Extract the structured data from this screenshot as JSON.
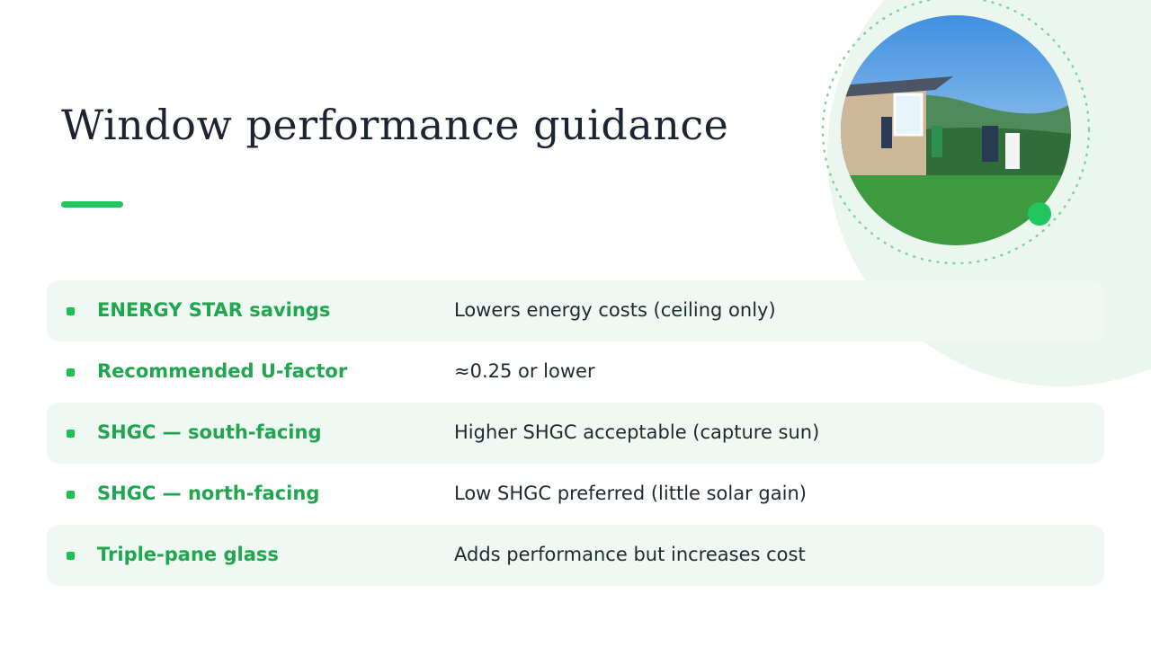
{
  "title": "Window performance guidance",
  "table": {
    "rows": [
      [
        "ENERGY STAR savings",
        "Lowers energy costs (ceiling only)"
      ],
      [
        "Recommended U-factor",
        "≈0.25 or lower"
      ],
      [
        "SHGC — south-facing",
        "Higher SHGC acceptable (capture sun)"
      ],
      [
        "SHGC — north-facing",
        "Low SHGC preferred (little solar gain)"
      ],
      [
        "Triple-pane glass",
        "Adds performance but increases cost"
      ]
    ]
  }
}
